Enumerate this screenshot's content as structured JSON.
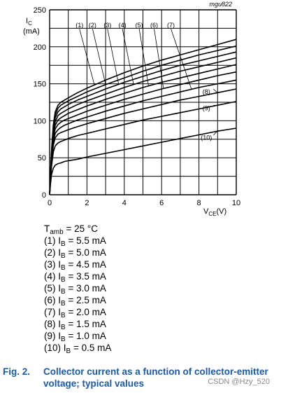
{
  "code": "mgu822",
  "chart_data": {
    "type": "line",
    "ylabel_symbol": "I",
    "ylabel_sub": "C",
    "ylabel_unit": "(mA)",
    "xlabel_symbol": "V",
    "xlabel_sub": "CE",
    "xlabel_unit": "(V)",
    "xlim": [
      0,
      10
    ],
    "ylim": [
      0,
      250
    ],
    "xticks": [
      0,
      2,
      4,
      6,
      8,
      10
    ],
    "yticks": [
      0,
      50,
      100,
      150,
      200,
      250
    ],
    "grid": true,
    "x": [
      0,
      0.05,
      0.1,
      0.2,
      0.3,
      0.45,
      0.6,
      0.8,
      1,
      1.5,
      2,
      3,
      4,
      5,
      6,
      7,
      8,
      9,
      10
    ],
    "series": [
      {
        "name": "(1)",
        "values": [
          0,
          30,
          60,
          95,
          112,
          121,
          125,
          128,
          131,
          138,
          144,
          155,
          165,
          174,
          182,
          189,
          196,
          203,
          210
        ]
      },
      {
        "name": "(2)",
        "values": [
          0,
          29,
          58,
          92,
          108,
          117,
          121,
          124,
          127,
          133,
          139,
          149,
          158,
          167,
          175,
          182,
          189,
          195,
          201
        ]
      },
      {
        "name": "(3)",
        "values": [
          0,
          28,
          56,
          89,
          104,
          112,
          116,
          119,
          122,
          128,
          133,
          143,
          152,
          160,
          168,
          175,
          181,
          187,
          193
        ]
      },
      {
        "name": "(4)",
        "values": [
          0,
          27,
          54,
          85,
          99,
          107,
          110,
          113,
          116,
          122,
          127,
          136,
          145,
          153,
          160,
          167,
          173,
          179,
          185
        ]
      },
      {
        "name": "(5)",
        "values": [
          0,
          26,
          52,
          81,
          94,
          101,
          104,
          107,
          110,
          115,
          120,
          129,
          137,
          145,
          152,
          158,
          164,
          170,
          176
        ]
      },
      {
        "name": "(6)",
        "values": [
          0,
          25,
          50,
          77,
          89,
          95,
          98,
          101,
          103,
          108,
          113,
          121,
          129,
          136,
          143,
          149,
          155,
          161,
          166
        ]
      },
      {
        "name": "(7)",
        "values": [
          0,
          24,
          47,
          72,
          83,
          88,
          91,
          94,
          96,
          101,
          105,
          113,
          120,
          127,
          133,
          139,
          145,
          150,
          155
        ]
      },
      {
        "name": "(8)",
        "values": [
          0,
          22,
          44,
          67,
          77,
          82,
          84,
          86,
          88,
          92,
          96,
          103,
          110,
          116,
          122,
          128,
          133,
          138,
          143
        ]
      },
      {
        "name": "(9)",
        "values": [
          0,
          20,
          38,
          58,
          66,
          70,
          72,
          74,
          76,
          80,
          83,
          89,
          95,
          101,
          106,
          111,
          116,
          121,
          126
        ]
      },
      {
        "name": "(10)",
        "values": [
          0,
          15,
          27,
          36,
          40,
          42,
          43,
          45,
          46,
          48,
          51,
          56,
          61,
          66,
          71,
          76,
          81,
          86,
          90
        ]
      }
    ]
  },
  "conditions": {
    "tamb_prefix": "T",
    "tamb_sub": "amb",
    "tamb_value": " = 25 °C",
    "items": [
      {
        "num": "(1)",
        "sym": "I",
        "sub": "B",
        "value": " = 5.5 mA"
      },
      {
        "num": "(2)",
        "sym": "I",
        "sub": "B",
        "value": " = 5.0 mA"
      },
      {
        "num": "(3)",
        "sym": "I",
        "sub": "B",
        "value": " = 4.5 mA"
      },
      {
        "num": "(4)",
        "sym": "I",
        "sub": "B",
        "value": " = 3.5 mA"
      },
      {
        "num": "(5)",
        "sym": "I",
        "sub": "B",
        "value": " = 3.0 mA"
      },
      {
        "num": "(6)",
        "sym": "I",
        "sub": "B",
        "value": " = 2.5 mA"
      },
      {
        "num": "(7)",
        "sym": "I",
        "sub": "B",
        "value": " = 2.0 mA"
      },
      {
        "num": "(8)",
        "sym": "I",
        "sub": "B",
        "value": " = 1.5 mA"
      },
      {
        "num": "(9)",
        "sym": "I",
        "sub": "B",
        "value": " = 1.0 mA"
      },
      {
        "num": "(10)",
        "sym": "I",
        "sub": "B",
        "value": " = 0.5 mA"
      }
    ]
  },
  "caption": {
    "label": "Fig. 2.",
    "text": "Collector current as a function of collector-emitter voltage; typical values"
  },
  "watermark": "CSDN @Hzy_520",
  "colors": {
    "caption": "#1a5aa6",
    "grid": "#000000",
    "curve": "#000000"
  }
}
